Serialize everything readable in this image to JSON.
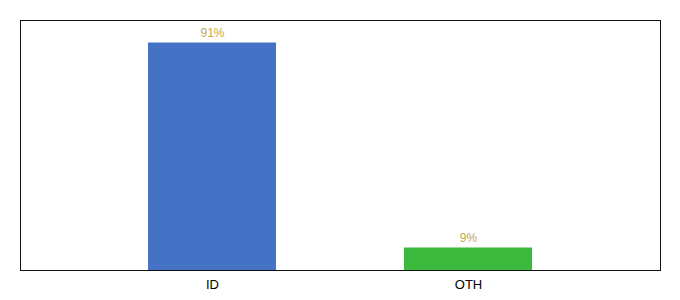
{
  "chart_data": {
    "type": "bar",
    "categories": [
      "ID",
      "OTH"
    ],
    "values": [
      91,
      9
    ],
    "value_labels": [
      "91%",
      "9%"
    ],
    "colors": [
      "#4472c4",
      "#3dba3d"
    ],
    "data_labels": true,
    "ylim": [
      0,
      100
    ],
    "tick_labels": "x",
    "grid": false
  }
}
